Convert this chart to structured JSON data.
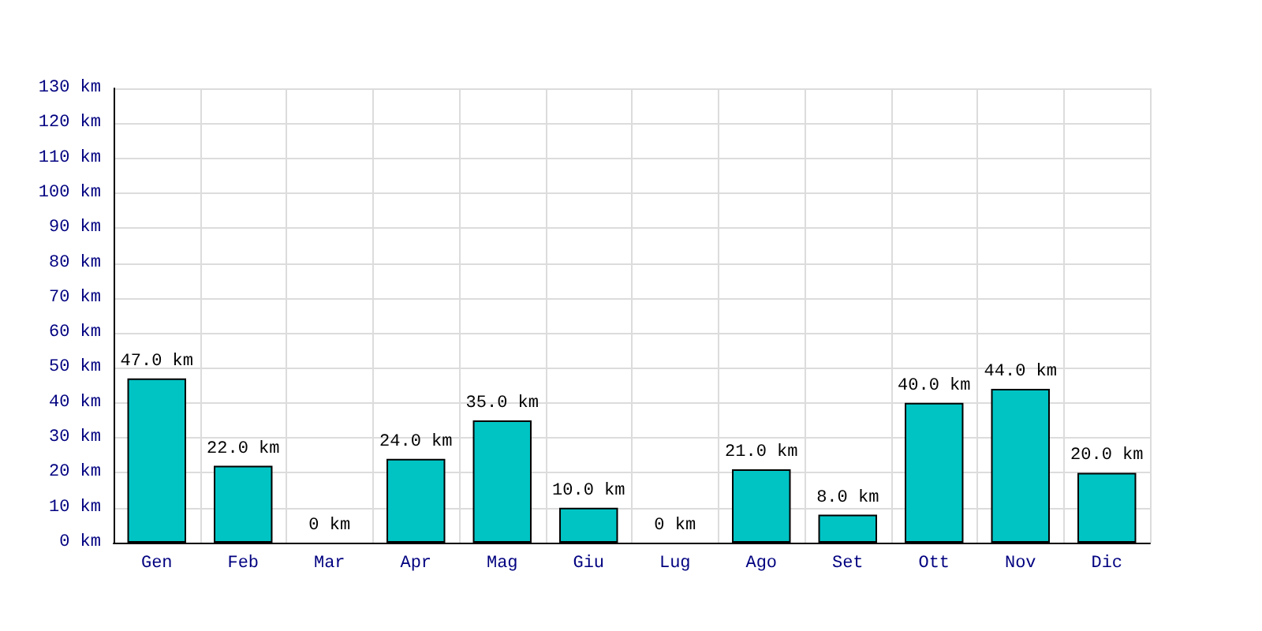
{
  "chart_data": {
    "type": "bar",
    "categories": [
      "Gen",
      "Feb",
      "Mar",
      "Apr",
      "Mag",
      "Giu",
      "Lug",
      "Ago",
      "Set",
      "Ott",
      "Nov",
      "Dic"
    ],
    "values": [
      47,
      22,
      0,
      24,
      35,
      10,
      0,
      21,
      8,
      40,
      44,
      20
    ],
    "value_labels": [
      "47.0 km",
      "22.0 km",
      "0 km",
      "24.0 km",
      "35.0 km",
      "10.0 km",
      "0 km",
      "21.0 km",
      "8.0 km",
      "40.0 km",
      "44.0 km",
      "20.0 km"
    ],
    "color": "#00c4c4",
    "ylim": [
      0,
      130
    ],
    "yticks": [
      {
        "value": 0,
        "label": "0 km"
      },
      {
        "value": 10,
        "label": "10 km"
      },
      {
        "value": 20,
        "label": "20 km"
      },
      {
        "value": 30,
        "label": "30 km"
      },
      {
        "value": 40,
        "label": "40 km"
      },
      {
        "value": 50,
        "label": "50 km"
      },
      {
        "value": 60,
        "label": "60 km"
      },
      {
        "value": 70,
        "label": "70 km"
      },
      {
        "value": 80,
        "label": "80 km"
      },
      {
        "value": 90,
        "label": "90 km"
      },
      {
        "value": 100,
        "label": "100 km"
      },
      {
        "value": 110,
        "label": "110 km"
      },
      {
        "value": 120,
        "label": "120 km"
      },
      {
        "value": 130,
        "label": "130 km"
      }
    ],
    "grid": true
  }
}
